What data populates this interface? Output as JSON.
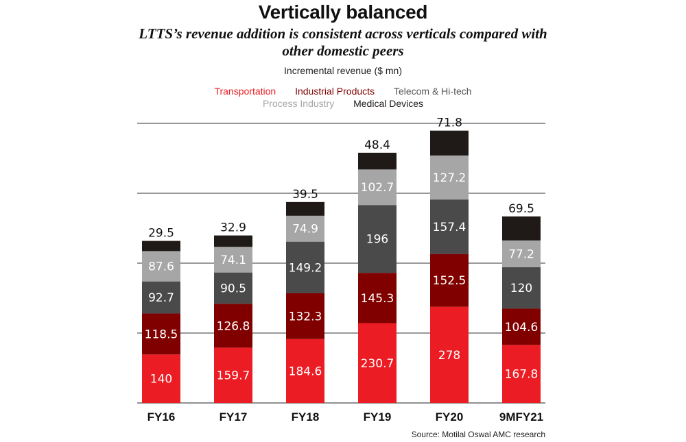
{
  "chart_data": {
    "type": "bar",
    "stacked": true,
    "title": "Vertically balanced",
    "subtitle": "LTTS’s revenue addition is consistent across verticals compared with other domestic peers",
    "unit_label": "Incremental revenue ($ mn)",
    "categories": [
      "FY16",
      "FY17",
      "FY18",
      "FY19",
      "FY20",
      "9MFY21"
    ],
    "series": [
      {
        "name": "Transportation",
        "color": "#ec1c24",
        "label_color": "#ffffff",
        "values": [
          140,
          159.7,
          184.6,
          230.7,
          278,
          167.8
        ]
      },
      {
        "name": "Industrial Products",
        "color": "#800000",
        "label_color": "#ffffff",
        "values": [
          118.5,
          126.8,
          132.3,
          145.3,
          152.5,
          104.6
        ]
      },
      {
        "name": "Telecom & Hi-tech",
        "color": "#4a4a4a",
        "label_color": "#ffffff",
        "values": [
          92.7,
          90.5,
          149.2,
          196,
          157.4,
          120
        ]
      },
      {
        "name": "Process Industry",
        "color": "#a6a6a6",
        "label_color": "#111111",
        "values": [
          87.6,
          74.1,
          74.9,
          102.7,
          127.2,
          77.2
        ]
      },
      {
        "name": "Medical Devices",
        "color": "#1f1a17",
        "label_color": "#111111",
        "values": [
          29.5,
          32.9,
          39.5,
          48.4,
          71.8,
          69.5
        ]
      }
    ],
    "legend": {
      "placement": "top",
      "rows": [
        [
          {
            "label": "Transportation",
            "color": "#ec1c24"
          },
          {
            "label": "Industrial Products",
            "color": "#800000"
          },
          {
            "label": "Telecom & Hi-tech",
            "color": "#555555"
          }
        ],
        [
          {
            "label": "Process Industry",
            "color": "#a6a6a6"
          },
          {
            "label": "Medical Devices",
            "color": "#1f1a17"
          }
        ]
      ]
    },
    "ylim": [
      0,
      808
    ],
    "grid_lines": [
      202,
      404,
      606,
      808
    ],
    "grid": true,
    "source": "Source: Motilal Oswal AMC research"
  }
}
